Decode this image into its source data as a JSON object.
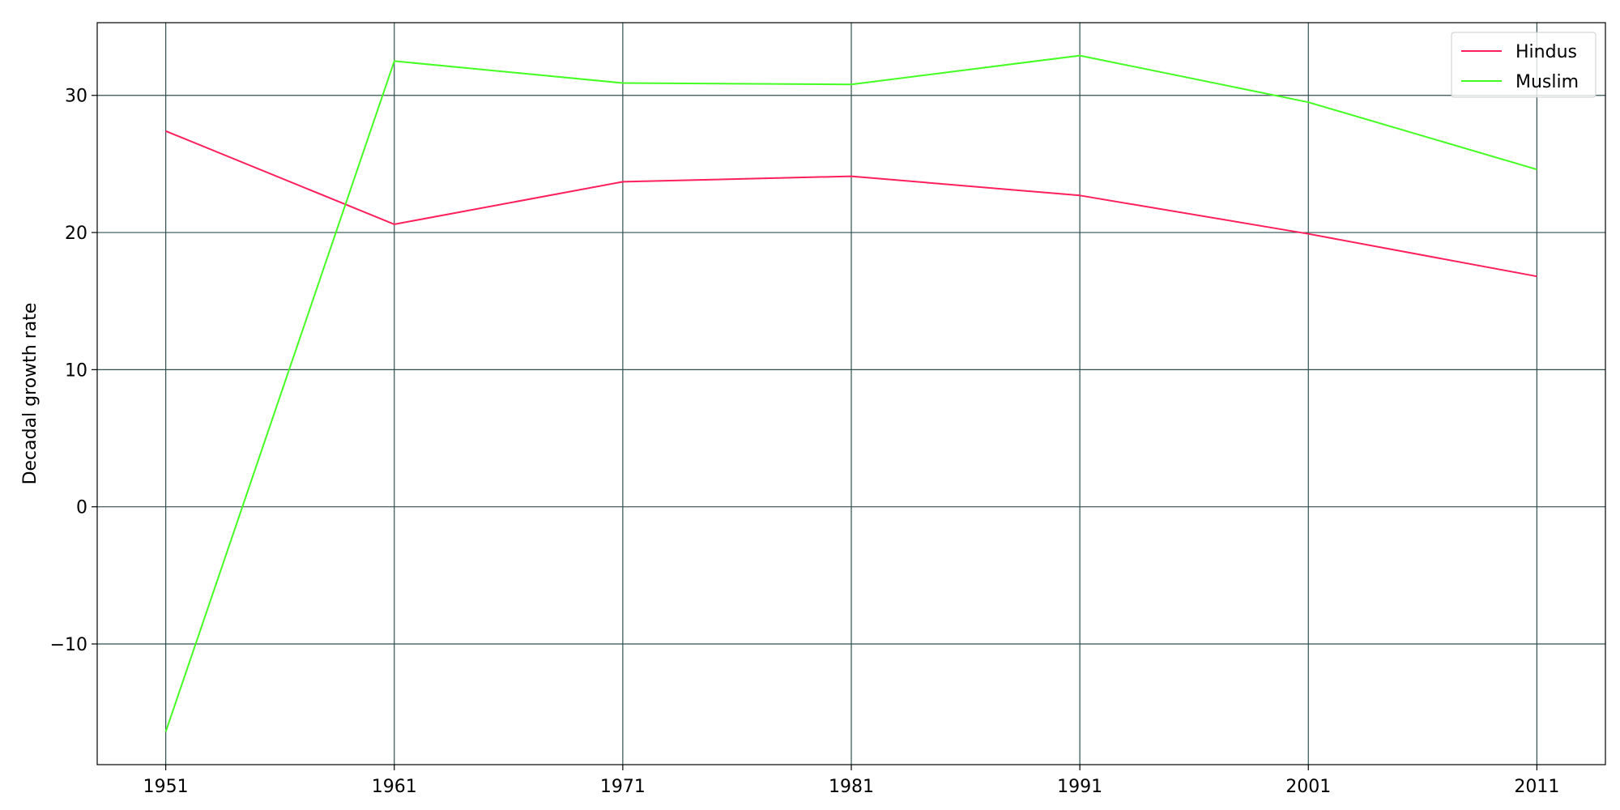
{
  "chart_data": {
    "type": "line",
    "title": "",
    "xlabel": "",
    "ylabel": "Decadal growth rate",
    "x": [
      1951,
      1961,
      1971,
      1981,
      1991,
      2001,
      2011
    ],
    "x_tick_labels": [
      "1951",
      "1961",
      "1971",
      "1981",
      "1991",
      "2001",
      "2011"
    ],
    "y_ticks": [
      -10,
      0,
      10,
      20,
      30
    ],
    "y_tick_labels": [
      "−10",
      "0",
      "10",
      "20",
      "30"
    ],
    "xlim": [
      1948,
      2014
    ],
    "ylim": [
      -18.8,
      35.3
    ],
    "grid": true,
    "legend_position": "top-right",
    "series": [
      {
        "name": "Hindus",
        "color": "#ff1f5b",
        "values": [
          27.4,
          20.6,
          23.7,
          24.1,
          22.7,
          19.9,
          16.8
        ]
      },
      {
        "name": "Muslim",
        "color": "#44ff22",
        "values": [
          -16.4,
          32.5,
          30.9,
          30.8,
          32.9,
          29.5,
          24.6
        ]
      }
    ],
    "grid_color": "#2f4f4f"
  }
}
